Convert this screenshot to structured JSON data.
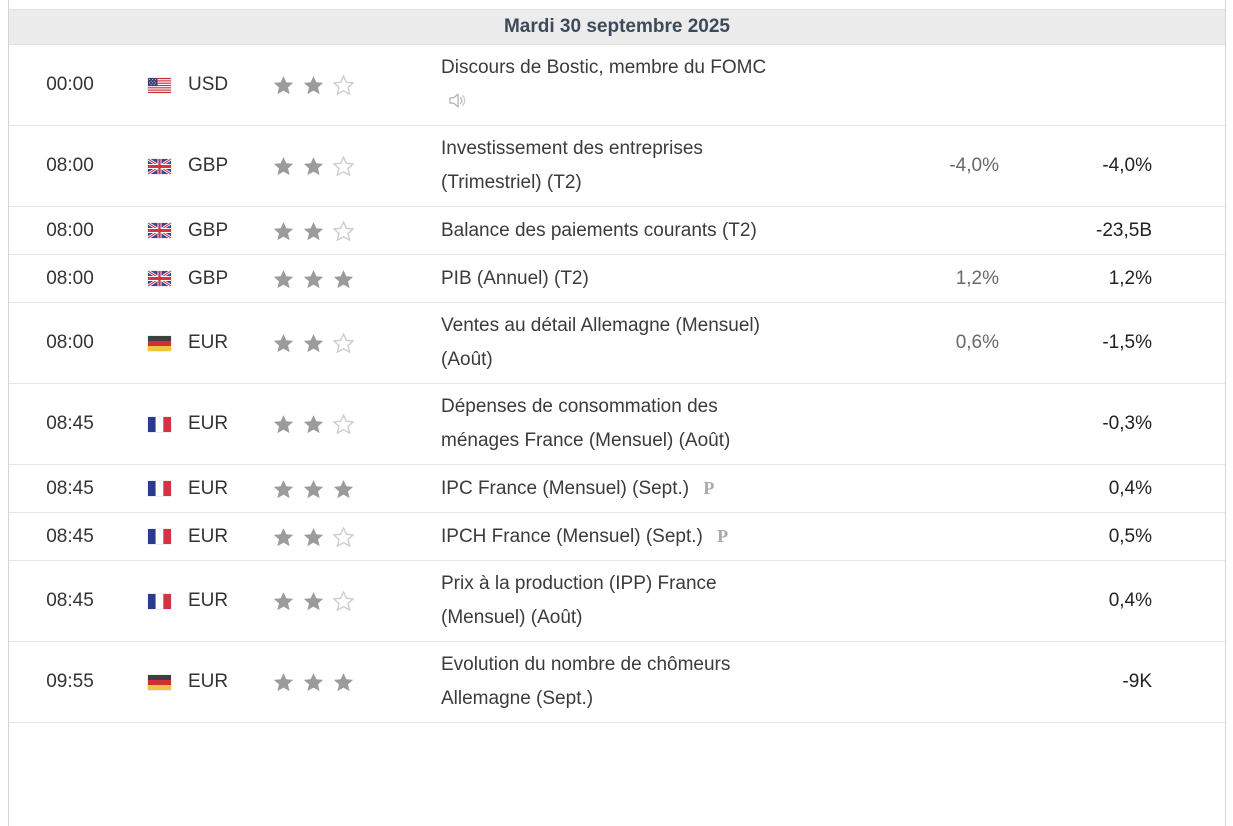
{
  "calendar": {
    "date_header": "Mardi 30 septembre 2025",
    "theme": {
      "header_bg": "#ececec",
      "header_text": "#3d4a5c",
      "forecast_text": "#696969",
      "previous_text": "#222222",
      "star_filled": "#9b9b9b",
      "star_empty": "#cfcfcf"
    },
    "rows": [
      {
        "time": "00:00",
        "currency": "USD",
        "flag_icon": "flag-us-icon",
        "importance": 2,
        "event": "Discours de Bostic, membre du FOMC",
        "marker_icon": "speaker-icon",
        "preliminary_label": "",
        "forecast": "",
        "previous": ""
      },
      {
        "time": "08:00",
        "currency": "GBP",
        "flag_icon": "flag-gb-icon",
        "importance": 2,
        "event": "Investissement des entreprises (Trimestriel) (T2)",
        "marker_icon": "",
        "preliminary_label": "",
        "forecast": "-4,0%",
        "previous": "-4,0%"
      },
      {
        "time": "08:00",
        "currency": "GBP",
        "flag_icon": "flag-gb-icon",
        "importance": 2,
        "event": "Balance des paiements courants (T2)",
        "marker_icon": "",
        "preliminary_label": "",
        "forecast": "",
        "previous": "-23,5B"
      },
      {
        "time": "08:00",
        "currency": "GBP",
        "flag_icon": "flag-gb-icon",
        "importance": 3,
        "event": "PIB (Annuel) (T2)",
        "marker_icon": "",
        "preliminary_label": "",
        "forecast": "1,2%",
        "previous": "1,2%"
      },
      {
        "time": "08:00",
        "currency": "EUR",
        "flag_icon": "flag-de-icon",
        "importance": 2,
        "event": "Ventes au détail Allemagne (Mensuel) (Août)",
        "marker_icon": "",
        "preliminary_label": "",
        "forecast": "0,6%",
        "previous": "-1,5%"
      },
      {
        "time": "08:45",
        "currency": "EUR",
        "flag_icon": "flag-fr-icon",
        "importance": 2,
        "event": "Dépenses de consommation des ménages France (Mensuel) (Août)",
        "marker_icon": "",
        "preliminary_label": "",
        "forecast": "",
        "previous": "-0,3%"
      },
      {
        "time": "08:45",
        "currency": "EUR",
        "flag_icon": "flag-fr-icon",
        "importance": 3,
        "event": "IPC France (Mensuel) (Sept.)",
        "marker_icon": "preliminary-icon",
        "preliminary_label": "P",
        "forecast": "",
        "previous": "0,4%"
      },
      {
        "time": "08:45",
        "currency": "EUR",
        "flag_icon": "flag-fr-icon",
        "importance": 2,
        "event": "IPCH France (Mensuel) (Sept.)",
        "marker_icon": "preliminary-icon",
        "preliminary_label": "P",
        "forecast": "",
        "previous": "0,5%"
      },
      {
        "time": "08:45",
        "currency": "EUR",
        "flag_icon": "flag-fr-icon",
        "importance": 2,
        "event": "Prix à la production (IPP) France (Mensuel) (Août)",
        "marker_icon": "",
        "preliminary_label": "",
        "forecast": "",
        "previous": "0,4%"
      },
      {
        "time": "09:55",
        "currency": "EUR",
        "flag_icon": "flag-de-icon",
        "importance": 3,
        "event": "Evolution du nombre de chômeurs Allemagne (Sept.)",
        "marker_icon": "",
        "preliminary_label": "",
        "forecast": "",
        "previous": "-9K"
      }
    ]
  }
}
